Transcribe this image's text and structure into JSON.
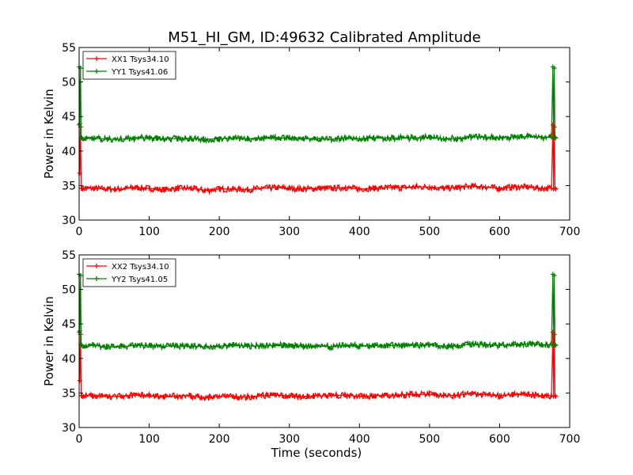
{
  "title": "M51_HI_GM, ID:49632 Calibrated Amplitude",
  "chart_data": [
    {
      "type": "line",
      "title": "M51_HI_GM, ID:49632 Calibrated Amplitude",
      "xlabel": "",
      "ylabel": "Power in Kelvin",
      "xlim": [
        0,
        700
      ],
      "ylim": [
        30,
        55
      ],
      "xticks": [
        "0",
        "100",
        "200",
        "300",
        "400",
        "500",
        "600",
        "700"
      ],
      "yticks": [
        "30",
        "35",
        "40",
        "45",
        "50",
        "55"
      ],
      "legend_position": "top-left",
      "series": [
        {
          "name": "XX1 Tsys34.10",
          "color": "#ff0000",
          "x": [
            0,
            1,
            2,
            3,
            4,
            10,
            20,
            40,
            60,
            80,
            100,
            120,
            140,
            160,
            180,
            200,
            220,
            240,
            260,
            280,
            300,
            320,
            340,
            360,
            380,
            400,
            420,
            440,
            460,
            480,
            500,
            520,
            540,
            560,
            580,
            600,
            620,
            640,
            660,
            674,
            676,
            677,
            678,
            679,
            680
          ],
          "y": [
            43.8,
            36.8,
            43.5,
            34.6,
            34.6,
            34.6,
            34.6,
            34.5,
            34.5,
            34.7,
            34.6,
            34.4,
            34.6,
            34.6,
            34.3,
            34.5,
            34.5,
            34.4,
            34.6,
            34.7,
            34.6,
            34.5,
            34.6,
            34.6,
            34.7,
            34.5,
            34.6,
            34.7,
            34.7,
            34.8,
            34.8,
            34.6,
            34.7,
            34.9,
            34.8,
            34.6,
            34.8,
            34.8,
            34.6,
            34.6,
            43.8,
            34.5,
            43.5,
            34.6,
            34.5
          ]
        },
        {
          "name": "YY1 Tsys41.06",
          "color": "#008000",
          "x": [
            0,
            1,
            2,
            3,
            4,
            10,
            20,
            40,
            60,
            80,
            100,
            120,
            140,
            160,
            180,
            200,
            220,
            240,
            260,
            280,
            300,
            320,
            340,
            360,
            380,
            400,
            420,
            440,
            460,
            480,
            500,
            520,
            540,
            560,
            580,
            600,
            620,
            640,
            660,
            674,
            676,
            677,
            678,
            679,
            680
          ],
          "y": [
            52.2,
            44.0,
            52.0,
            42.0,
            41.9,
            41.8,
            41.9,
            41.7,
            41.7,
            41.9,
            41.9,
            41.8,
            41.8,
            41.8,
            41.7,
            41.8,
            41.9,
            41.8,
            41.8,
            41.9,
            41.9,
            41.8,
            41.8,
            41.7,
            41.9,
            41.8,
            41.9,
            41.9,
            41.9,
            41.9,
            42.0,
            41.8,
            41.8,
            42.1,
            42.0,
            41.9,
            42.0,
            42.1,
            42.0,
            42.0,
            52.2,
            41.9,
            52.0,
            42.0,
            41.9
          ]
        }
      ]
    },
    {
      "type": "line",
      "title": "",
      "xlabel": "Time (seconds)",
      "ylabel": "Power in Kelvin",
      "xlim": [
        0,
        700
      ],
      "ylim": [
        30,
        55
      ],
      "xticks": [
        "0",
        "100",
        "200",
        "300",
        "400",
        "500",
        "600",
        "700"
      ],
      "yticks": [
        "30",
        "35",
        "40",
        "45",
        "50",
        "55"
      ],
      "legend_position": "top-left",
      "series": [
        {
          "name": "XX2 Tsys34.10",
          "color": "#ff0000",
          "x": [
            0,
            1,
            2,
            3,
            4,
            10,
            20,
            40,
            60,
            80,
            100,
            120,
            140,
            160,
            180,
            200,
            220,
            240,
            260,
            280,
            300,
            320,
            340,
            360,
            380,
            400,
            420,
            440,
            460,
            480,
            500,
            520,
            540,
            560,
            580,
            600,
            620,
            640,
            660,
            674,
            676,
            677,
            678,
            679,
            680
          ],
          "y": [
            43.8,
            36.8,
            43.5,
            34.6,
            34.6,
            34.6,
            34.6,
            34.5,
            34.5,
            34.7,
            34.6,
            34.4,
            34.6,
            34.6,
            34.3,
            34.5,
            34.5,
            34.4,
            34.6,
            34.7,
            34.6,
            34.5,
            34.6,
            34.6,
            34.7,
            34.5,
            34.6,
            34.7,
            34.7,
            34.8,
            34.8,
            34.6,
            34.7,
            34.9,
            34.8,
            34.6,
            34.8,
            34.8,
            34.6,
            34.6,
            43.8,
            34.5,
            43.5,
            34.6,
            34.5
          ]
        },
        {
          "name": "YY2 Tsys41.05",
          "color": "#008000",
          "x": [
            0,
            1,
            2,
            3,
            4,
            10,
            20,
            40,
            60,
            80,
            100,
            120,
            140,
            160,
            180,
            200,
            220,
            240,
            260,
            280,
            300,
            320,
            340,
            360,
            380,
            400,
            420,
            440,
            460,
            480,
            500,
            520,
            540,
            560,
            580,
            600,
            620,
            640,
            660,
            674,
            676,
            677,
            678,
            679,
            680
          ],
          "y": [
            52.2,
            44.0,
            52.0,
            42.0,
            41.9,
            41.8,
            41.9,
            41.7,
            41.7,
            41.9,
            41.9,
            41.8,
            41.8,
            41.8,
            41.7,
            41.8,
            41.9,
            41.8,
            41.8,
            41.9,
            41.9,
            41.8,
            41.8,
            41.7,
            41.9,
            41.8,
            41.9,
            41.9,
            41.9,
            41.9,
            42.0,
            41.8,
            41.8,
            42.1,
            42.0,
            41.9,
            42.0,
            42.1,
            42.0,
            42.0,
            52.2,
            41.9,
            52.0,
            42.0,
            41.9
          ]
        }
      ]
    }
  ]
}
